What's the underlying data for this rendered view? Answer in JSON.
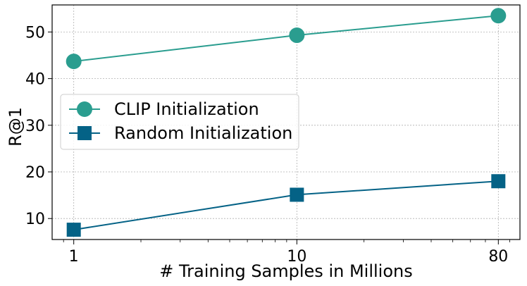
{
  "chart_data": {
    "type": "line",
    "title": "",
    "xlabel": "# Training Samples in Millions",
    "ylabel": "R@1",
    "x_scale": "log",
    "x": [
      1,
      10,
      80
    ],
    "x_tick_labels": [
      "1",
      "10",
      "80"
    ],
    "xlim": [
      0.8,
      100
    ],
    "ylim": [
      5.5,
      55.8
    ],
    "y_ticks": [
      10,
      20,
      30,
      40,
      50
    ],
    "grid": true,
    "legend_position": "center-left",
    "series": [
      {
        "name": "CLIP Initialization",
        "values": [
          43.7,
          49.3,
          53.5
        ],
        "color": "#2a9d8f",
        "marker": "circle"
      },
      {
        "name": "Random Initialization",
        "values": [
          7.6,
          15.1,
          18.0
        ],
        "color": "#046286",
        "marker": "square"
      }
    ]
  }
}
